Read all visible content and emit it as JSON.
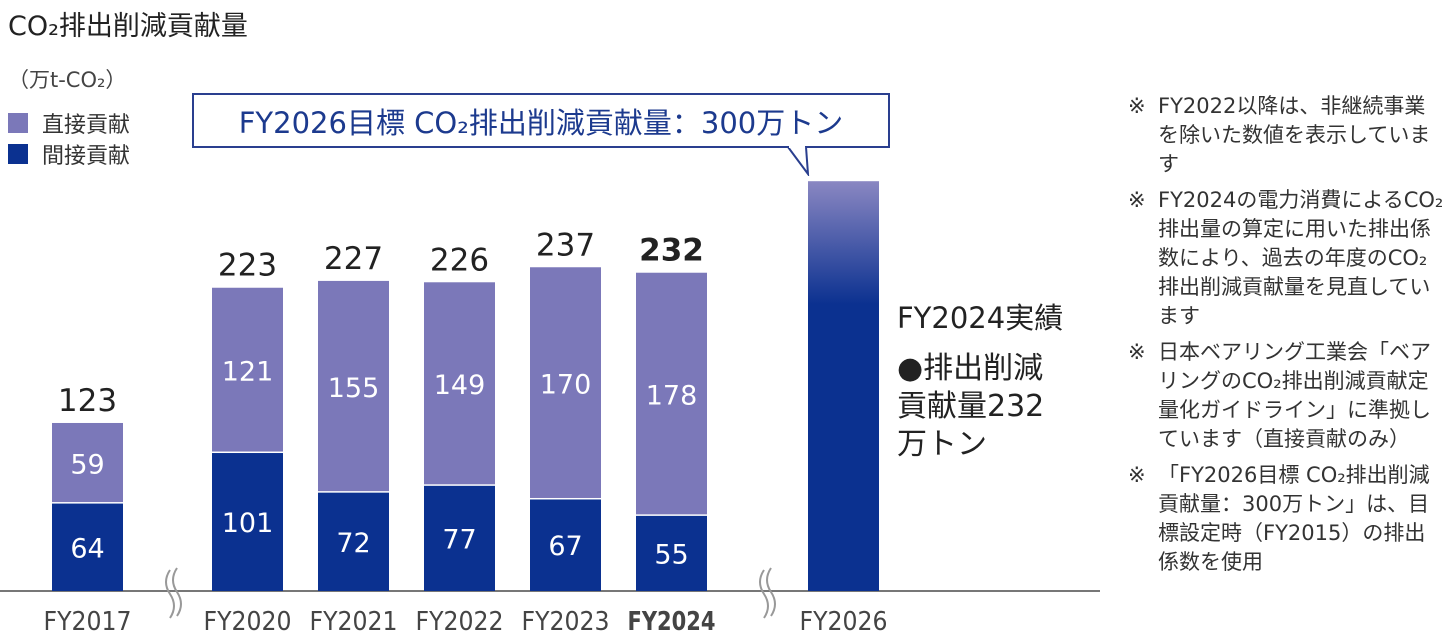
{
  "title": "CO₂排出削減貢献量",
  "colors": {
    "direct": "#7b78b9",
    "indirect": "#0b3190",
    "accent": "#1c3a8e"
  },
  "chart_data": {
    "type": "bar",
    "stacked": true,
    "title": "CO₂排出削減貢献量",
    "unit_label": "（万t-CO₂）",
    "categories": [
      "FY2017",
      "FY2020",
      "FY2021",
      "FY2022",
      "FY2023",
      "FY2024",
      "FY2026"
    ],
    "series": [
      {
        "name": "間接貢献",
        "values": [
          64,
          101,
          72,
          77,
          67,
          55,
          null
        ]
      },
      {
        "name": "直接貢献",
        "values": [
          59,
          121,
          155,
          149,
          170,
          178,
          null
        ]
      }
    ],
    "totals": [
      "123",
      "223",
      "227",
      "226",
      "237",
      "232",
      null
    ],
    "target": {
      "category": "FY2026",
      "value": 300
    },
    "axis_breaks": [
      "FY2017-FY2020",
      "FY2024-FY2026"
    ],
    "legend_placement": "top-left",
    "grid": false
  },
  "legend": {
    "direct": "直接貢献",
    "indirect": "間接貢献"
  },
  "callout": "FY2026目標 CO₂排出削減貢献量：300万トン",
  "actual": {
    "title": "FY2024実績",
    "body": "●排出削減貢献量232万トン"
  },
  "notes": [
    "FY2022以降は、非継続事業を除いた数値を表示しています",
    "FY2024の電力消費によるCO₂排出量の算定に用いた排出係数により、過去の年度のCO₂排出削減貢献量を見直しています",
    "日本ベアリング工業会「ベアリングのCO₂排出削減貢献定量化ガイドライン」に準拠しています（直接貢献のみ）",
    "「FY2026目標 CO₂排出削減貢献量：300万トン」は、目標設定時（FY2015）の排出係数を使用"
  ],
  "note_mark": "※"
}
